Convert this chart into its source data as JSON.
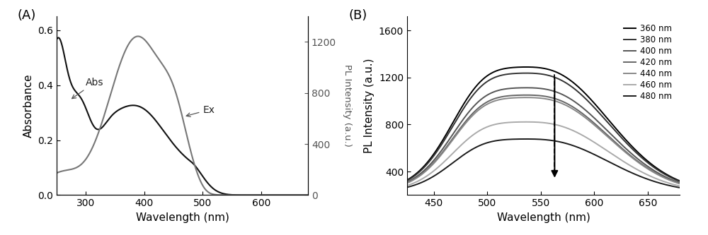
{
  "panel_A": {
    "xlim": [
      250,
      680
    ],
    "ylim_abs": [
      0.0,
      0.65
    ],
    "ylim_pl": [
      0,
      1400
    ],
    "xlabel": "Wavelength (nm)",
    "ylabel_left": "Absorbance",
    "ylabel_right": "PL Intensity (a.u.)",
    "yticks_left": [
      0.0,
      0.2,
      0.4,
      0.6
    ],
    "yticks_right": [
      0,
      400,
      800,
      1200
    ],
    "xticks": [
      300,
      400,
      500,
      600
    ],
    "label_abs": "Abs",
    "label_ex": "Ex"
  },
  "panel_B": {
    "xlim": [
      425,
      680
    ],
    "ylim": [
      200,
      1720
    ],
    "xlabel": "Wavelength (nm)",
    "ylabel": "PL Intensity (a.u.)",
    "yticks": [
      400,
      800,
      1200,
      1600
    ],
    "xticks": [
      450,
      500,
      550,
      600,
      650
    ],
    "dashed_line_x": 563,
    "legend_labels": [
      "360 nm",
      "380 nm",
      "400 nm",
      "420 nm",
      "440 nm",
      "460 nm",
      "480 nm"
    ],
    "legend_colors": [
      "#000000",
      "#333333",
      "#555555",
      "#666666",
      "#888888",
      "#aaaaaa",
      "#1a1a1a"
    ],
    "peak_intensities": [
      1250,
      1200,
      1080,
      1020,
      1000,
      800,
      660
    ],
    "peak_x": 555,
    "baseline": 220
  },
  "background_color": "#ffffff"
}
